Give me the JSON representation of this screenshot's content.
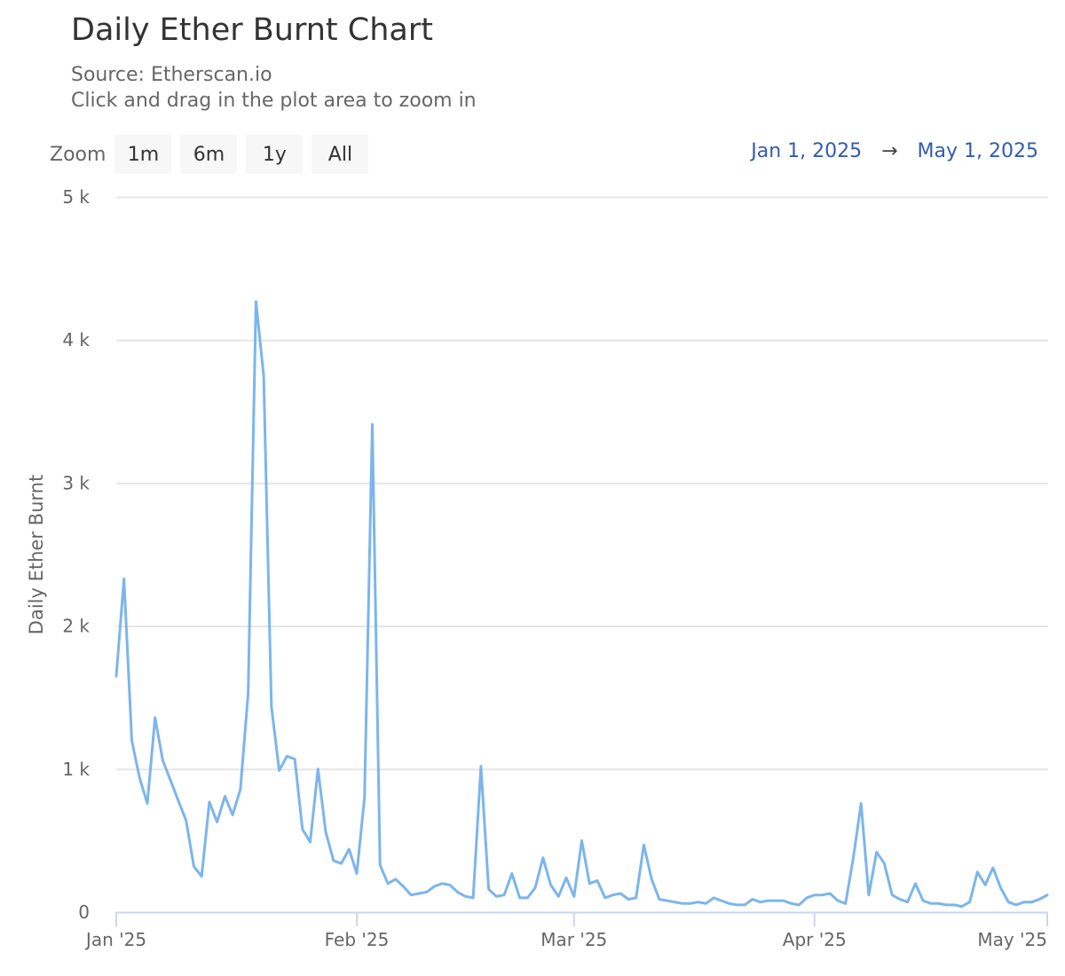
{
  "header": {
    "title": "Daily Ether Burnt Chart",
    "source": "Source: Etherscan.io",
    "hint": "Click and drag in the plot area to zoom in"
  },
  "zoom": {
    "label": "Zoom",
    "buttons": [
      "1m",
      "6m",
      "1y",
      "All"
    ]
  },
  "range": {
    "from": "Jan 1, 2025",
    "arrow": "→",
    "to": "May 1, 2025"
  },
  "colors": {
    "line": "#7cb5ec",
    "grid": "#e6e6e6",
    "axis": "#ccd6eb",
    "range_text": "#335cad"
  },
  "chart_data": {
    "type": "line",
    "title": "Daily Ether Burnt Chart",
    "subtitle": "Source: Etherscan.io",
    "xlabel": "",
    "ylabel": "Daily Ether Burnt",
    "ylim": [
      0,
      5000
    ],
    "yticks": [
      "0",
      "1 k",
      "2 k",
      "3 k",
      "4 k",
      "5 k"
    ],
    "xticks": [
      "Jan '25",
      "Feb '25",
      "Mar '25",
      "Apr '25",
      "May '25"
    ],
    "grid": true,
    "legend": false,
    "x_start": "2025-01-01",
    "x_step_days": 1,
    "values": [
      1650,
      2330,
      1200,
      940,
      760,
      1360,
      1060,
      920,
      780,
      640,
      320,
      250,
      770,
      630,
      810,
      680,
      860,
      1530,
      4270,
      3750,
      1440,
      990,
      1090,
      1070,
      580,
      490,
      1000,
      560,
      360,
      340,
      440,
      270,
      800,
      3410,
      330,
      200,
      230,
      180,
      120,
      130,
      140,
      180,
      200,
      190,
      140,
      110,
      100,
      1020,
      160,
      110,
      120,
      270,
      100,
      100,
      170,
      380,
      190,
      110,
      240,
      110,
      500,
      200,
      220,
      100,
      120,
      130,
      90,
      100,
      470,
      230,
      90,
      80,
      70,
      60,
      60,
      70,
      60,
      100,
      80,
      60,
      50,
      50,
      90,
      70,
      80,
      80,
      80,
      60,
      50,
      100,
      120,
      120,
      130,
      80,
      60,
      380,
      760,
      120,
      420,
      340,
      120,
      90,
      70,
      200,
      80,
      60,
      60,
      50,
      50,
      40,
      70,
      280,
      190,
      310,
      170,
      70,
      50,
      70,
      70,
      90,
      120
    ]
  }
}
